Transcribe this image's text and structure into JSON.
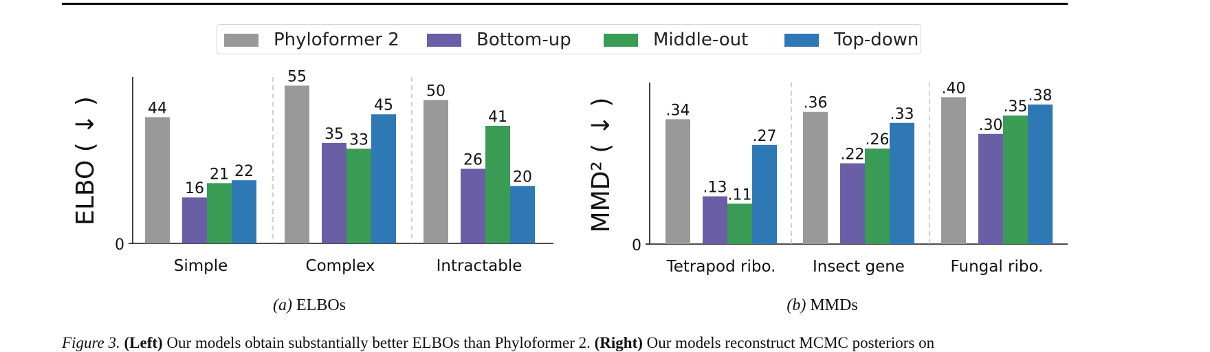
{
  "figure": {
    "caption_label": "Figure 3.",
    "caption_left_tag": "(Left)",
    "caption_left_text": " Our models obtain substantially better ELBOs than Phyloformer 2. ",
    "caption_right_tag": "(Right)",
    "caption_right_text": " Our models reconstruct MCMC posteriors on"
  },
  "legend": {
    "items": [
      {
        "label": "Phyloformer 2",
        "color": "#999999"
      },
      {
        "label": "Bottom-up",
        "color": "#6a5ea6"
      },
      {
        "label": "Middle-out",
        "color": "#3a9b55"
      },
      {
        "label": "Top-down",
        "color": "#2f78b6"
      }
    ]
  },
  "chart_data": [
    {
      "type": "bar",
      "panel_tag": "(a)",
      "title": "ELBOs",
      "ylabel": "ELBO ( ↓ )",
      "yticks": [
        "0"
      ],
      "ylim": [
        0,
        58
      ],
      "categories": [
        "Simple",
        "Complex",
        "Intractable"
      ],
      "series": [
        {
          "name": "Phyloformer 2",
          "values": [
            44,
            55,
            50
          ],
          "labels": [
            "44",
            "55",
            "50"
          ]
        },
        {
          "name": "Bottom-up",
          "values": [
            16,
            35,
            26
          ],
          "labels": [
            "16",
            "35",
            "26"
          ]
        },
        {
          "name": "Middle-out",
          "values": [
            21,
            33,
            41
          ],
          "labels": [
            "21",
            "33",
            "41"
          ]
        },
        {
          "name": "Top-down",
          "values": [
            22,
            45,
            20
          ],
          "labels": [
            "22",
            "45",
            "20"
          ]
        }
      ],
      "group_separators": "dashed"
    },
    {
      "type": "bar",
      "panel_tag": "(b)",
      "title": "MMDs",
      "ylabel": "MMD² ( ↓ )",
      "yticks": [
        "0"
      ],
      "ylim": [
        0,
        0.44
      ],
      "categories": [
        "Tetrapod ribo.",
        "Insect gene",
        "Fungal ribo."
      ],
      "series": [
        {
          "name": "Phyloformer 2",
          "values": [
            0.34,
            0.36,
            0.4
          ],
          "labels": [
            ".34",
            ".36",
            ".40"
          ]
        },
        {
          "name": "Bottom-up",
          "values": [
            0.13,
            0.22,
            0.3
          ],
          "labels": [
            ".13",
            ".22",
            ".30"
          ]
        },
        {
          "name": "Middle-out",
          "values": [
            0.11,
            0.26,
            0.35
          ],
          "labels": [
            ".11",
            ".26",
            ".35"
          ]
        },
        {
          "name": "Top-down",
          "values": [
            0.27,
            0.33,
            0.38
          ],
          "labels": [
            ".27",
            ".33",
            ".38"
          ]
        }
      ],
      "group_separators": "dashed"
    }
  ]
}
